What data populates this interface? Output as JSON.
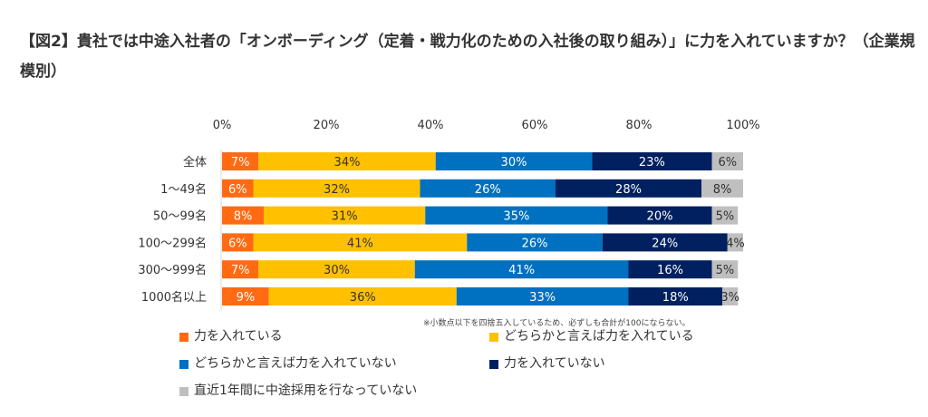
{
  "chart_data": {
    "type": "bar",
    "orientation": "horizontal",
    "stacked": true,
    "title": "【図2】貴社では中途入社者の「オンボーディング（定着・戦力化のための入社後の取り組み）」に力を入れていますか？（企業規模別）",
    "xlim": [
      0,
      100
    ],
    "xticks": [
      "0%",
      "20%",
      "40%",
      "60%",
      "80%",
      "100%"
    ],
    "grid": false,
    "legend_placement": "bottom",
    "categories": [
      "全体",
      "1～49名",
      "50～99名",
      "100～299名",
      "300～999名",
      "1000名以上"
    ],
    "series": [
      {
        "name": "力を入れている",
        "color": "#ff6a13",
        "values": [
          7,
          6,
          8,
          6,
          7,
          9
        ]
      },
      {
        "name": "どちらかと言えば力を入れている",
        "color": "#ffc000",
        "values": [
          34,
          32,
          31,
          41,
          30,
          36
        ]
      },
      {
        "name": "どちらかと言えば力を入れていない",
        "color": "#0070c0",
        "values": [
          30,
          26,
          35,
          26,
          41,
          33
        ]
      },
      {
        "name": "力を入れていない",
        "color": "#002060",
        "values": [
          23,
          28,
          20,
          24,
          16,
          18
        ]
      },
      {
        "name": "直近1年間に中途採用を行なっていない",
        "color": "#bfbfbf",
        "values": [
          6,
          8,
          5,
          4,
          5,
          3
        ]
      }
    ],
    "note": "※小数点以下を四捨五入しているため、必ずしも合計が100にならない。"
  }
}
